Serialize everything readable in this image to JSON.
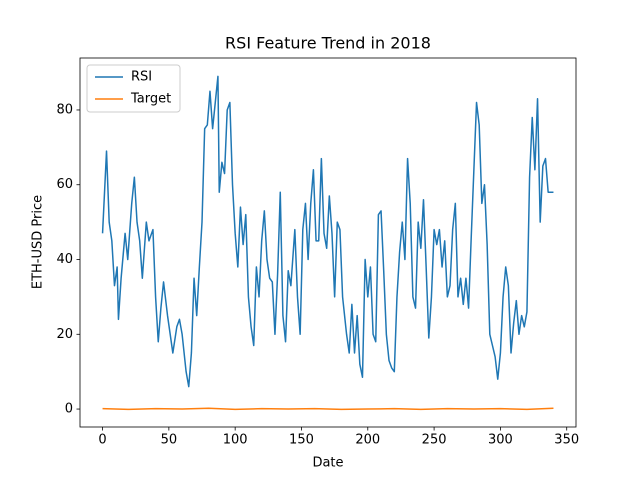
{
  "chart_data": {
    "type": "line",
    "title": "RSI Feature Trend in 2018",
    "x_label": "Date",
    "y_label": "ETH-USD Price",
    "xlim": [
      -17,
      357
    ],
    "xticks": [
      0,
      50,
      100,
      150,
      200,
      250,
      300,
      350
    ],
    "ylim": [
      -4.8,
      93.9
    ],
    "yticks": [
      0,
      20,
      40,
      60,
      80
    ],
    "legend": "upper left",
    "series": [
      {
        "name": "RSI",
        "color": "#1f77b4",
        "x": [
          0,
          3,
          5,
          7,
          9,
          11,
          12,
          14,
          17,
          19,
          22,
          24,
          26,
          28,
          30,
          33,
          35,
          38,
          40,
          42,
          44,
          46,
          49,
          51,
          53,
          56,
          58,
          60,
          63,
          65,
          67,
          69,
          71,
          73,
          75,
          77,
          79,
          81,
          83,
          85,
          87,
          88,
          90,
          92,
          94,
          96,
          98,
          100,
          102,
          104,
          106,
          108,
          110,
          112,
          114,
          116,
          118,
          120,
          122,
          124,
          126,
          128,
          130,
          132,
          134,
          136,
          138,
          140,
          142,
          145,
          147,
          149,
          151,
          153,
          155,
          157,
          159,
          161,
          163,
          165,
          167,
          169,
          171,
          173,
          175,
          177,
          179,
          181,
          184,
          186,
          188,
          190,
          192,
          194,
          196,
          198,
          200,
          202,
          204,
          206,
          208,
          210,
          212,
          214,
          216,
          218,
          220,
          222,
          224,
          226,
          228,
          230,
          232,
          234,
          236,
          238,
          240,
          242,
          244,
          246,
          248,
          250,
          252,
          254,
          256,
          258,
          260,
          262,
          264,
          266,
          268,
          270,
          272,
          274,
          276,
          278,
          280,
          282,
          284,
          286,
          288,
          290,
          292,
          294,
          296,
          298,
          300,
          302,
          304,
          306,
          308,
          310,
          312,
          314,
          316,
          318,
          320,
          322,
          324,
          326,
          328,
          330,
          332,
          334,
          336,
          340
        ],
        "values": [
          47,
          69,
          50,
          45,
          33,
          38,
          24,
          35,
          47,
          40,
          55,
          62,
          50,
          45,
          35,
          50,
          45,
          48,
          30,
          18,
          27,
          34,
          25,
          20,
          15,
          22,
          24,
          20,
          10,
          6,
          15,
          35,
          25,
          38,
          50,
          75,
          76,
          85,
          75,
          82,
          89,
          58,
          66,
          63,
          80,
          82,
          60,
          47,
          38,
          54,
          44,
          52,
          30,
          22,
          17,
          38,
          30,
          45,
          53,
          40,
          35,
          34,
          20,
          36,
          58,
          25,
          18,
          37,
          33,
          48,
          30,
          20,
          48,
          55,
          40,
          55,
          64,
          45,
          45,
          67,
          47,
          43,
          57,
          47,
          30,
          50,
          48,
          30,
          20,
          15,
          28,
          15,
          25,
          12,
          8.5,
          40,
          30,
          38,
          20,
          18,
          52,
          53,
          37,
          20,
          13,
          11,
          10,
          30,
          42,
          50,
          40,
          67,
          55,
          30,
          27,
          50,
          43,
          56,
          38,
          19,
          30,
          48,
          44,
          48,
          38,
          45,
          30,
          33,
          48,
          55,
          30,
          35,
          28,
          35,
          27,
          46,
          64,
          82,
          76,
          55,
          60,
          44,
          20,
          17,
          14,
          8,
          15,
          30,
          38,
          33,
          15,
          23,
          29,
          20,
          25,
          22,
          26,
          62,
          78,
          64,
          83,
          50,
          65,
          67,
          58,
          58
        ]
      },
      {
        "name": "Target",
        "color": "#ff7f0e",
        "x": [
          0,
          20,
          40,
          60,
          80,
          100,
          120,
          140,
          160,
          180,
          200,
          220,
          240,
          260,
          280,
          300,
          320,
          340
        ],
        "values": [
          0.1,
          -0.1,
          0.1,
          0,
          0.2,
          -0.1,
          0.1,
          0,
          0.1,
          -0.1,
          0,
          0.1,
          -0.1,
          0.1,
          0,
          0.1,
          -0.1,
          0.2
        ]
      }
    ]
  }
}
